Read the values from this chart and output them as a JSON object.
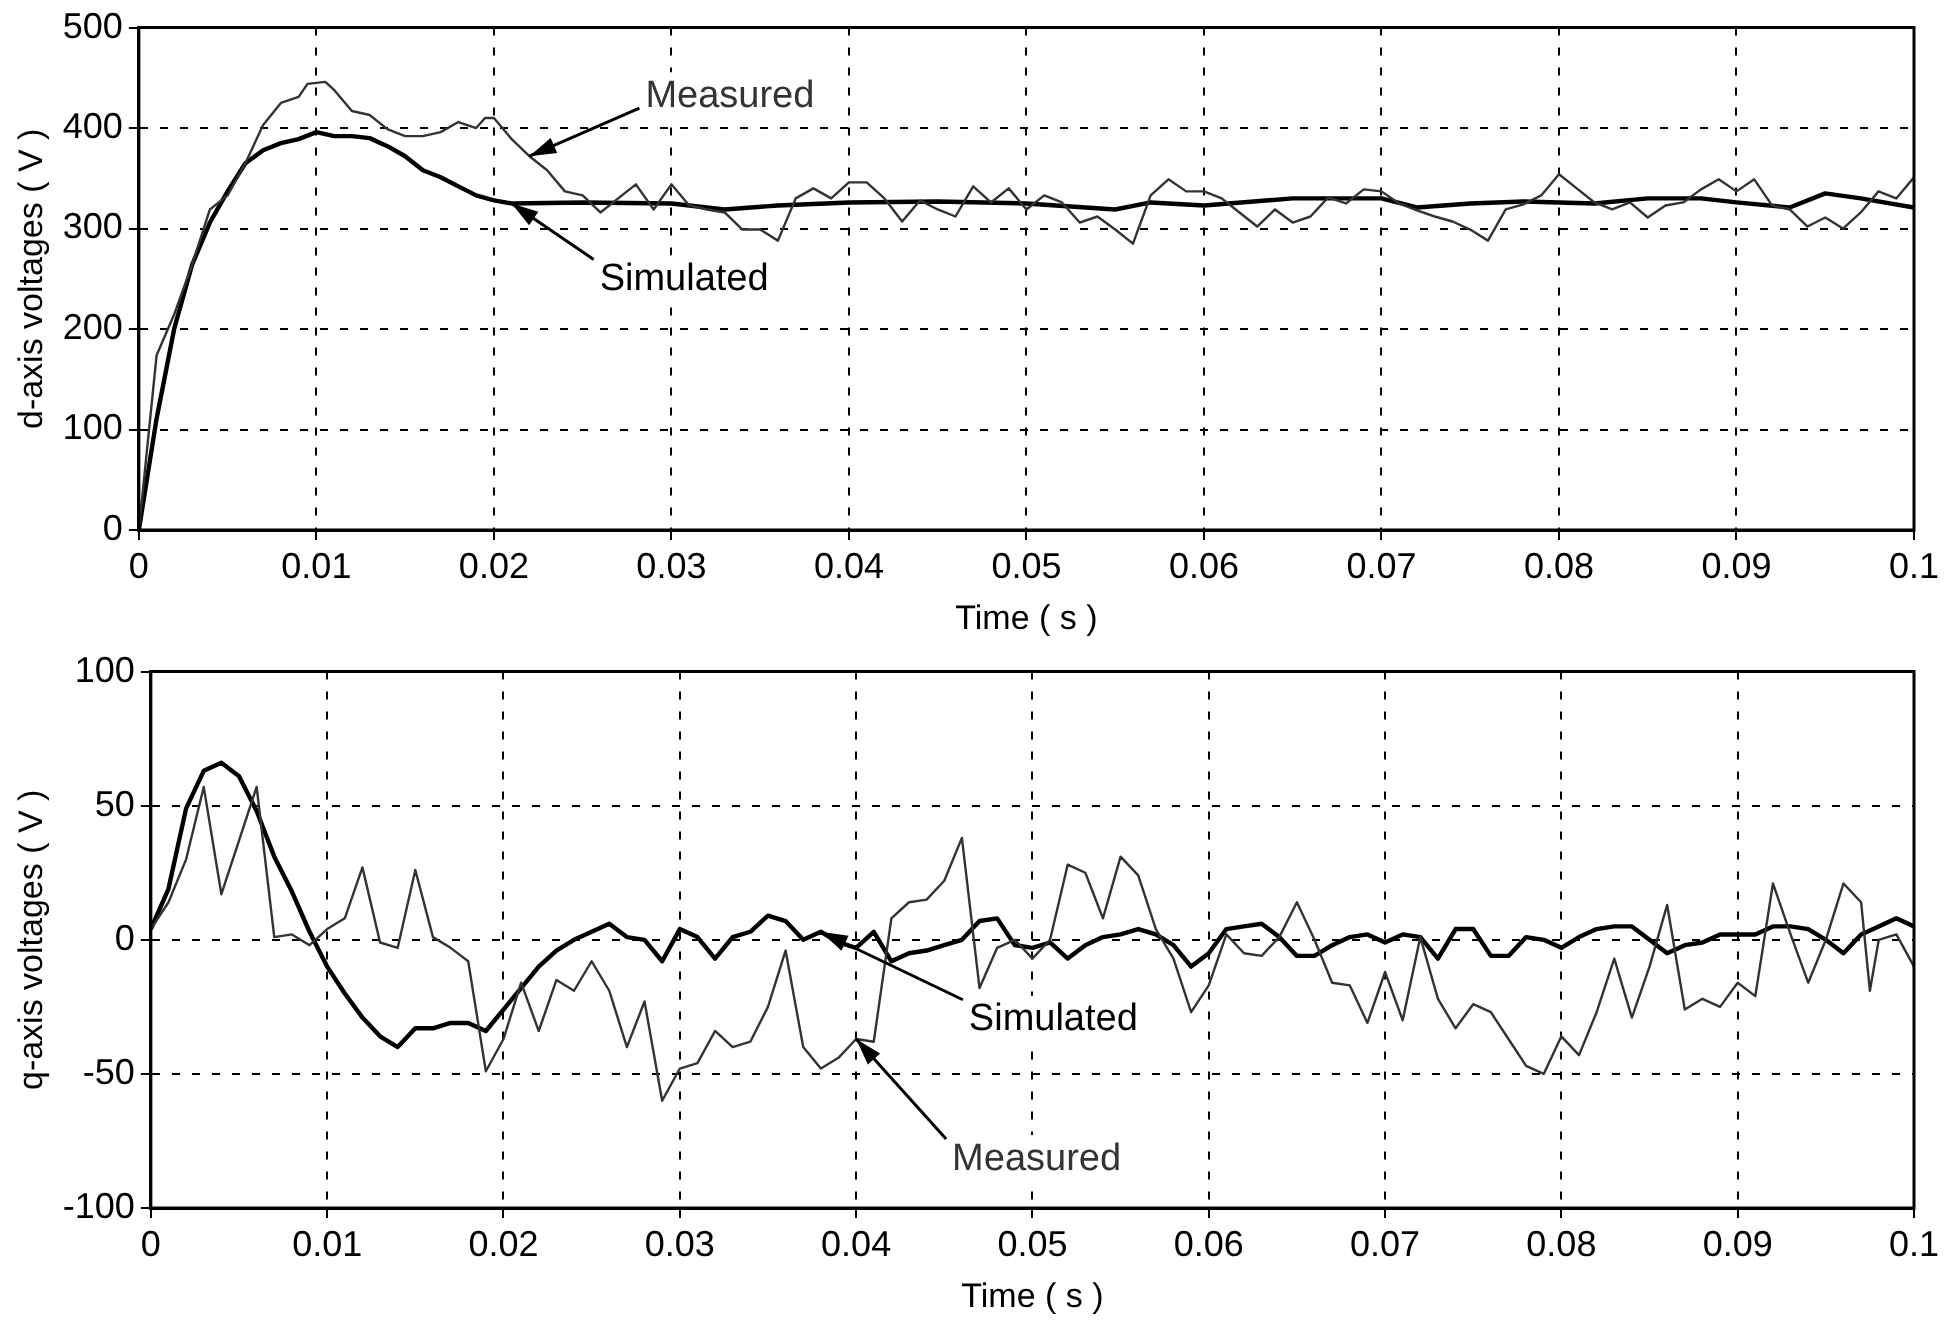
{
  "chart_data": [
    {
      "type": "line",
      "xlabel": "Time ( s )",
      "ylabel": "d-axis voltages ( V )",
      "xlim": [
        0,
        0.1
      ],
      "xticks": [
        0,
        0.01,
        0.02,
        0.03,
        0.04,
        0.05,
        0.06,
        0.07,
        0.08,
        0.09,
        0.1
      ],
      "ylim": [
        0,
        500
      ],
      "yticks": [
        0,
        100,
        200,
        300,
        400,
        500
      ],
      "grid": true,
      "series": [
        {
          "name": "Measured",
          "color": "#333333",
          "x": [
            0,
            0.001,
            0.002,
            0.003,
            0.004,
            0.005,
            0.006,
            0.007,
            0.008,
            0.009,
            0.0095,
            0.0105,
            0.011,
            0.012,
            0.013,
            0.014,
            0.015,
            0.016,
            0.017,
            0.018,
            0.019,
            0.0195,
            0.02,
            0.021,
            0.022,
            0.023,
            0.024,
            0.025,
            0.026,
            0.027,
            0.028,
            0.029,
            0.03,
            0.031,
            0.032,
            0.033,
            0.034,
            0.035,
            0.036,
            0.037,
            0.038,
            0.039,
            0.04,
            0.041,
            0.042,
            0.043,
            0.044,
            0.045,
            0.046,
            0.047,
            0.048,
            0.049,
            0.05,
            0.051,
            0.052,
            0.053,
            0.054,
            0.055,
            0.056,
            0.057,
            0.058,
            0.059,
            0.06,
            0.061,
            0.062,
            0.063,
            0.064,
            0.065,
            0.066,
            0.067,
            0.068,
            0.069,
            0.07,
            0.071,
            0.072,
            0.073,
            0.074,
            0.075,
            0.076,
            0.077,
            0.078,
            0.079,
            0.08,
            0.081,
            0.082,
            0.083,
            0.084,
            0.085,
            0.086,
            0.087,
            0.088,
            0.089,
            0.09,
            0.091,
            0.092,
            0.093,
            0.094,
            0.095,
            0.096,
            0.097,
            0.098,
            0.099,
            0.1
          ],
          "values": [
            0,
            174,
            215,
            264,
            319,
            333,
            365,
            403,
            425,
            431,
            444,
            446,
            438,
            417,
            413,
            399,
            392,
            392,
            396,
            406,
            400,
            410,
            410,
            389,
            372,
            358,
            337,
            333,
            316,
            330,
            344,
            319,
            344,
            323,
            319,
            316,
            299,
            299,
            288,
            330,
            340,
            330,
            346,
            346,
            330,
            307,
            328,
            319,
            312,
            342,
            326,
            340,
            319,
            333,
            326,
            306,
            312,
            299,
            285,
            333,
            349,
            337,
            337,
            330,
            316,
            302,
            319,
            306,
            312,
            331,
            325,
            339,
            337,
            325,
            318,
            312,
            307,
            299,
            288,
            319,
            324,
            333,
            354,
            340,
            326,
            319,
            326,
            311,
            323,
            326,
            339,
            349,
            337,
            349,
            323,
            319,
            302,
            311,
            300,
            316,
            337,
            330,
            351
          ]
        },
        {
          "name": "Simulated",
          "color": "#000000",
          "x": [
            0,
            0.001,
            0.002,
            0.003,
            0.004,
            0.005,
            0.006,
            0.007,
            0.008,
            0.009,
            0.01,
            0.011,
            0.012,
            0.013,
            0.014,
            0.015,
            0.016,
            0.017,
            0.018,
            0.019,
            0.02,
            0.021,
            0.025,
            0.03,
            0.033,
            0.036,
            0.04,
            0.045,
            0.05,
            0.055,
            0.057,
            0.06,
            0.065,
            0.07,
            0.072,
            0.075,
            0.078,
            0.082,
            0.085,
            0.088,
            0.09,
            0.093,
            0.095,
            0.097,
            0.1
          ],
          "values": [
            0,
            111,
            201,
            264,
            306,
            337,
            365,
            378,
            385,
            389,
            396,
            392,
            392,
            390,
            382,
            372,
            358,
            351,
            342,
            333,
            328,
            325,
            326,
            325,
            319,
            323,
            326,
            327,
            325,
            319,
            326,
            323,
            330,
            330,
            321,
            325,
            327,
            325,
            330,
            330,
            326,
            321,
            335,
            330,
            321
          ]
        }
      ]
    },
    {
      "type": "line",
      "xlabel": "Time ( s )",
      "ylabel": "q-axis voltages ( V )",
      "xlim": [
        0,
        0.1
      ],
      "xticks": [
        0,
        0.01,
        0.02,
        0.03,
        0.04,
        0.05,
        0.06,
        0.07,
        0.08,
        0.09,
        0.1
      ],
      "ylim": [
        -100,
        100
      ],
      "yticks": [
        -100,
        -50,
        0,
        50,
        100
      ],
      "grid": true,
      "series": [
        {
          "name": "Measured",
          "color": "#333333",
          "x": [
            0,
            0.001,
            0.002,
            0.003,
            0.004,
            0.005,
            0.006,
            0.007,
            0.008,
            0.009,
            0.01,
            0.011,
            0.012,
            0.013,
            0.014,
            0.015,
            0.016,
            0.017,
            0.018,
            0.019,
            0.02,
            0.021,
            0.022,
            0.023,
            0.024,
            0.025,
            0.026,
            0.027,
            0.028,
            0.029,
            0.03,
            0.031,
            0.032,
            0.033,
            0.034,
            0.035,
            0.036,
            0.037,
            0.038,
            0.039,
            0.04,
            0.041,
            0.042,
            0.043,
            0.044,
            0.045,
            0.046,
            0.047,
            0.048,
            0.049,
            0.05,
            0.051,
            0.052,
            0.053,
            0.054,
            0.055,
            0.056,
            0.057,
            0.058,
            0.059,
            0.06,
            0.061,
            0.062,
            0.063,
            0.064,
            0.065,
            0.066,
            0.067,
            0.068,
            0.069,
            0.07,
            0.071,
            0.072,
            0.073,
            0.074,
            0.075,
            0.076,
            0.077,
            0.078,
            0.079,
            0.08,
            0.081,
            0.082,
            0.083,
            0.084,
            0.085,
            0.086,
            0.087,
            0.088,
            0.089,
            0.09,
            0.091,
            0.092,
            0.093,
            0.094,
            0.095,
            0.096,
            0.097,
            0.0975,
            0.098,
            0.099,
            0.1
          ],
          "values": [
            4,
            14,
            30,
            57,
            17,
            37,
            57,
            1,
            2,
            -2,
            4,
            8,
            27,
            -1,
            -3,
            26,
            1,
            -3,
            -8,
            -49,
            -37,
            -16,
            -34,
            -15,
            -19,
            -8,
            -19,
            -40,
            -23,
            -60,
            -48,
            -46,
            -34,
            -40,
            -38,
            -25,
            -4,
            -40,
            -48,
            -44,
            -37,
            -38,
            8,
            14,
            15,
            22,
            38,
            -18,
            -3,
            0,
            -7,
            0,
            28,
            25,
            8,
            31,
            24,
            4,
            -7,
            -27,
            -17,
            2,
            -5,
            -6,
            1,
            14,
            0,
            -16,
            -17,
            -31,
            -12,
            -30,
            1,
            -22,
            -33,
            -24,
            -27,
            -37,
            -47,
            -50,
            -36,
            -43,
            -27,
            -7,
            -29,
            -10,
            13,
            -26,
            -22,
            -25,
            -16,
            -21,
            21,
            2,
            -16,
            0,
            21,
            14,
            -19,
            0,
            2,
            -10
          ]
        },
        {
          "name": "Simulated",
          "color": "#000000",
          "x": [
            0,
            0.001,
            0.002,
            0.003,
            0.004,
            0.005,
            0.006,
            0.007,
            0.008,
            0.009,
            0.01,
            0.011,
            0.012,
            0.013,
            0.014,
            0.015,
            0.016,
            0.017,
            0.018,
            0.019,
            0.02,
            0.021,
            0.022,
            0.023,
            0.024,
            0.025,
            0.026,
            0.027,
            0.028,
            0.029,
            0.03,
            0.031,
            0.032,
            0.033,
            0.034,
            0.035,
            0.036,
            0.037,
            0.038,
            0.039,
            0.04,
            0.041,
            0.042,
            0.043,
            0.044,
            0.045,
            0.046,
            0.047,
            0.048,
            0.049,
            0.05,
            0.051,
            0.052,
            0.053,
            0.054,
            0.055,
            0.056,
            0.057,
            0.058,
            0.059,
            0.06,
            0.061,
            0.062,
            0.063,
            0.064,
            0.065,
            0.066,
            0.067,
            0.068,
            0.069,
            0.07,
            0.071,
            0.072,
            0.073,
            0.074,
            0.075,
            0.076,
            0.077,
            0.078,
            0.079,
            0.08,
            0.081,
            0.082,
            0.083,
            0.084,
            0.085,
            0.086,
            0.087,
            0.088,
            0.089,
            0.09,
            0.091,
            0.092,
            0.093,
            0.094,
            0.095,
            0.096,
            0.097,
            0.098,
            0.099,
            0.1
          ],
          "values": [
            4,
            19,
            49,
            63,
            66,
            61,
            48,
            31,
            18,
            3,
            -10,
            -20,
            -29,
            -36,
            -40,
            -33,
            -33,
            -31,
            -31,
            -34,
            -26,
            -18,
            -10,
            -4,
            0,
            3,
            6,
            1,
            0,
            -8,
            4,
            1,
            -7,
            1,
            3,
            9,
            7,
            0,
            3,
            -1,
            -3,
            3,
            -8,
            -5,
            -4,
            -2,
            0,
            7,
            8,
            -2,
            -3,
            -1,
            -7,
            -2,
            1,
            2,
            4,
            2,
            -2,
            -10,
            -5,
            4,
            5,
            6,
            1,
            -6,
            -6,
            -2,
            1,
            2,
            -1,
            2,
            1,
            -7,
            4,
            4,
            -6,
            -6,
            1,
            0,
            -3,
            1,
            4,
            5,
            5,
            0,
            -5,
            -2,
            -1,
            2,
            2,
            2,
            5,
            5,
            4,
            0,
            -5,
            2,
            5,
            8,
            5
          ]
        }
      ]
    }
  ]
}
